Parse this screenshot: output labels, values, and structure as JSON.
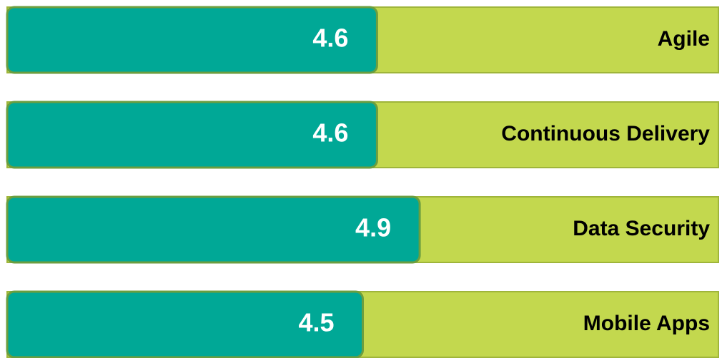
{
  "chart_data": {
    "type": "bar",
    "orientation": "horizontal",
    "categories": [
      "Agile",
      "Continuous Delivery",
      "Data Security",
      "Mobile Apps"
    ],
    "values": [
      4.6,
      4.6,
      4.9,
      4.5
    ],
    "color": "#00a896",
    "track_color": "#c3d84e",
    "xlim": [
      2,
      7
    ]
  }
}
